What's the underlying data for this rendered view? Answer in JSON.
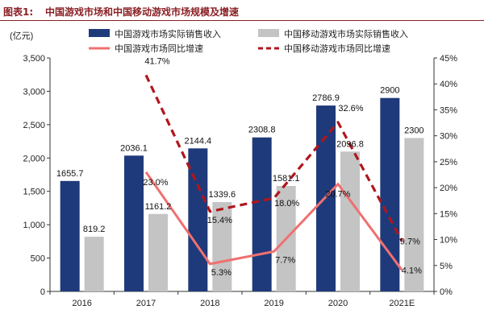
{
  "figure": {
    "label": "图表1:",
    "title": "中国游戏市场和中国移动游戏市场规模及增速"
  },
  "chart_data": {
    "type": "bar",
    "categories": [
      "2016",
      "2017",
      "2018",
      "2019",
      "2020",
      "2021E"
    ],
    "y_left_unit": "(亿元)",
    "y_left": {
      "min": 0,
      "max": 3500,
      "ticks": [
        0,
        500,
        1000,
        1500,
        2000,
        2500,
        3000,
        3500
      ],
      "tick_labels": [
        "0",
        "500",
        "1,000",
        "1,500",
        "2,000",
        "2,500",
        "3,000",
        "3,500"
      ]
    },
    "y_right": {
      "min": 0,
      "max": 45,
      "ticks": [
        0,
        5,
        10,
        15,
        20,
        25,
        30,
        35,
        40,
        45
      ],
      "tick_labels": [
        "0%",
        "5%",
        "10%",
        "15%",
        "20%",
        "25%",
        "30%",
        "35%",
        "40%",
        "45%"
      ]
    },
    "bar_series": [
      {
        "name": "中国游戏市场实际销售收入",
        "color": "#1f3a7a",
        "values": [
          1655.7,
          2036.1,
          2144.4,
          2308.8,
          2786.9,
          2900
        ],
        "labels": [
          "1655.7",
          "2036.1",
          "2144.4",
          "2308.8",
          "2786.9",
          "2900"
        ]
      },
      {
        "name": "中国移动游戏市场实际销售收入",
        "color": "#c4c4c4",
        "values": [
          819.2,
          1161.2,
          1339.6,
          1581.1,
          2096.8,
          2300
        ],
        "labels": [
          "819.2",
          "1161.2",
          "1339.6",
          "1581.1",
          "2096.8",
          "2300"
        ]
      }
    ],
    "line_series": [
      {
        "name": "中国游戏市场同比增速",
        "color": "#f07070",
        "style": "solid",
        "axis": "right",
        "values": [
          null,
          23.0,
          5.3,
          7.7,
          20.7,
          4.1
        ],
        "labels": [
          "",
          "23.0%",
          "5.3%",
          "7.7%",
          "20.7%",
          "4.1%"
        ]
      },
      {
        "name": "中国移动游戏市场同比增速",
        "color": "#b0161c",
        "style": "dashed",
        "axis": "right",
        "values": [
          null,
          41.7,
          15.4,
          18.0,
          32.6,
          9.7
        ],
        "labels": [
          "",
          "41.7%",
          "15.4%",
          "18.0%",
          "32.6%",
          "9.7%"
        ]
      }
    ],
    "legend_position": "top",
    "grid": false
  }
}
